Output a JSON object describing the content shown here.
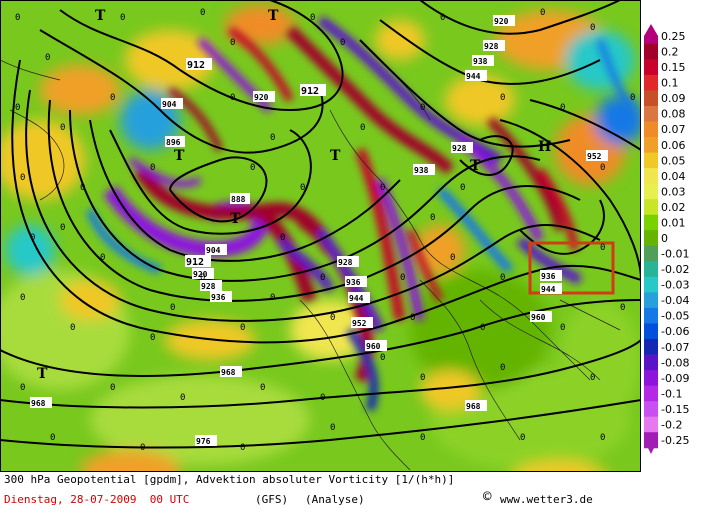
{
  "legend": {
    "labels": [
      "0.25",
      "0.2",
      "0.15",
      "0.1",
      "0.09",
      "0.08",
      "0.07",
      "0.06",
      "0.05",
      "0.04",
      "0.03",
      "0.02",
      "0.01",
      "0",
      "-0.01",
      "-0.02",
      "-0.03",
      "-0.04",
      "-0.05",
      "-0.06",
      "-0.07",
      "-0.08",
      "-0.09",
      "-0.1",
      "-0.15",
      "-0.2",
      "-0.25"
    ],
    "colors": [
      "#b4007a",
      "#a0002a",
      "#c8002a",
      "#e02828",
      "#c85028",
      "#d87840",
      "#f08c28",
      "#f0a028",
      "#f0c828",
      "#f0e650",
      "#e8f050",
      "#c8e628",
      "#78d200",
      "#64b400",
      "#50a05a",
      "#28b496",
      "#28c8c8",
      "#28a0dc",
      "#1478e6",
      "#0050dc",
      "#1428b4",
      "#5a14c8",
      "#8c14dc",
      "#b428e6",
      "#c850f0",
      "#e678f0",
      "#a01eb4"
    ]
  },
  "caption": {
    "line1": "300 hPa Geopotential [gpdm], Advektion absoluter Vorticity [1/(h*h)]",
    "date": "Dienstag, 28-07-2009  00 UTC",
    "model": "(GFS)",
    "analysis": "(Analyse)",
    "credit": "www.wetter3.de",
    "copyright": "©"
  },
  "map": {
    "contour_labels": [
      "912",
      "912",
      "904",
      "896",
      "888",
      "904",
      "912",
      "920",
      "928",
      "936",
      "920",
      "928",
      "936",
      "938",
      "944",
      "952",
      "960",
      "968",
      "968",
      "976",
      "920",
      "928",
      "938",
      "944",
      "928",
      "936",
      "944",
      "952",
      "960",
      "968"
    ],
    "pressure_labels": [
      "T",
      "T",
      "T",
      "T",
      "T",
      "T",
      "T",
      "H"
    ],
    "zero_label": "0"
  }
}
